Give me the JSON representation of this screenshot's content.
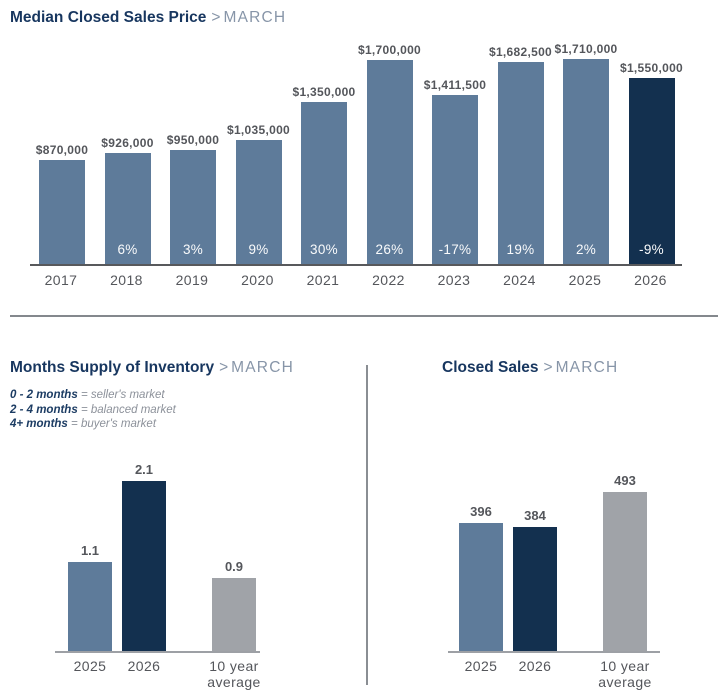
{
  "report": {
    "month": "MARCH",
    "title_separator": ">"
  },
  "colors": {
    "steel_blue_bar": "#5e7b9a",
    "dark_navy_bar": "#13304f",
    "gray_bar": "#a0a3a8",
    "title_navy": "#17365f",
    "title_muted": "#8795a8",
    "value_label_gray": "#54565b",
    "pct_label_white": "#fafbfc"
  },
  "chart_data": [
    {
      "type": "bar",
      "title": "Median Closed Sales Price",
      "separator": ">",
      "subtitle": "MARCH",
      "categories": [
        "2017",
        "2018",
        "2019",
        "2020",
        "2021",
        "2022",
        "2023",
        "2024",
        "2025",
        "2026"
      ],
      "values": [
        870000,
        926000,
        950000,
        1035000,
        1350000,
        1700000,
        1411500,
        1682500,
        1710000,
        1550000
      ],
      "value_labels": [
        "$870,000",
        "$926,000",
        "$950,000",
        "$1,035,000",
        "$1,350,000",
        "$1,700,000",
        "$1,411,500",
        "$1,682,500",
        "$1,710,000",
        "$1,550,000"
      ],
      "pct_labels": [
        "",
        "6%",
        "3%",
        "9%",
        "30%",
        "26%",
        "-17%",
        "19%",
        "2%",
        "-9%"
      ],
      "bar_colors": [
        "#5e7b9a",
        "#5e7b9a",
        "#5e7b9a",
        "#5e7b9a",
        "#5e7b9a",
        "#5e7b9a",
        "#5e7b9a",
        "#5e7b9a",
        "#5e7b9a",
        "#13304f"
      ],
      "ylim": [
        0,
        1710000
      ],
      "grid": false,
      "legend_position": "none",
      "value_label_position": "above-bar",
      "pct_label_position": "inside-bar-bottom"
    },
    {
      "type": "bar",
      "title": "Months Supply of Inventory",
      "separator": ">",
      "subtitle": "MARCH",
      "legend": [
        {
          "bold": "0 - 2 months",
          "rest": "= seller's market"
        },
        {
          "bold": "2 - 4 months",
          "rest": "= balanced market"
        },
        {
          "bold": "4+ months",
          "rest": "= buyer's market"
        }
      ],
      "categories": [
        "2025",
        "2026",
        "10 year average"
      ],
      "values": [
        1.1,
        2.1,
        0.9
      ],
      "value_labels": [
        "1.1",
        "2.1",
        "0.9"
      ],
      "bar_colors": [
        "#5e7b9a",
        "#13304f",
        "#a0a3a8"
      ],
      "ylim": [
        0,
        2.1
      ],
      "grid": false,
      "value_label_position": "above-bar"
    },
    {
      "type": "bar",
      "title": "Closed Sales",
      "separator": ">",
      "subtitle": "MARCH",
      "categories": [
        "2025",
        "2026",
        "10 year average"
      ],
      "values": [
        396,
        384,
        493
      ],
      "value_labels": [
        "396",
        "384",
        "493"
      ],
      "bar_colors": [
        "#5e7b9a",
        "#13304f",
        "#a0a3a8"
      ],
      "ylim": [
        0,
        493
      ],
      "grid": false,
      "value_label_position": "above-bar"
    }
  ]
}
